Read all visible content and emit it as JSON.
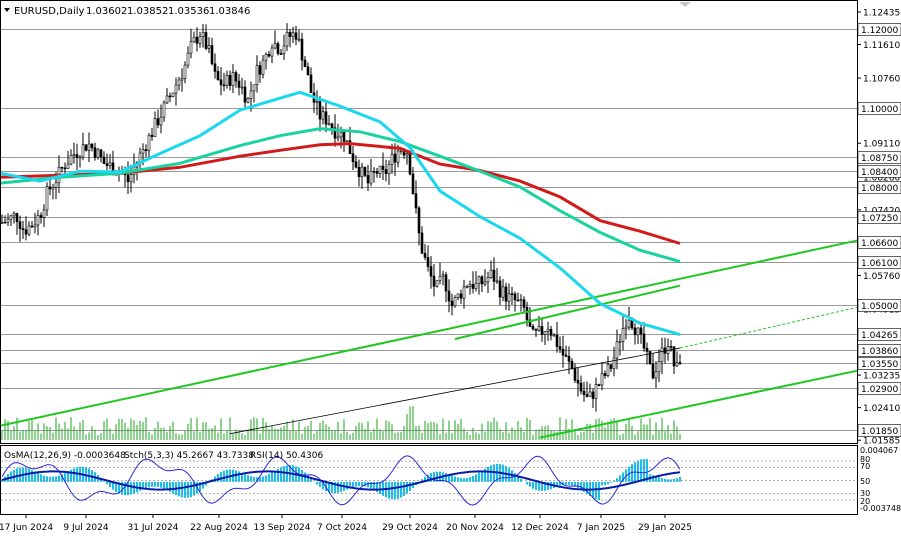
{
  "chart_data": {
    "type": "candlestick",
    "symbol_header": "EURUSD,Daily",
    "ohlc_header": {
      "open": "1.03602",
      "high": "1.03852",
      "low": "1.03536",
      "close": "1.03846"
    },
    "ylim": [
      1.0159,
      1.12435
    ],
    "y_ticks": [
      "1.12435",
      "1.11610",
      "1.10760",
      "1.09110",
      "1.08260",
      "1.07420",
      "1.05760",
      "1.04915",
      "1.03235",
      "1.02410",
      "1.01585"
    ],
    "level_lines": [
      {
        "label": "1.12000",
        "value": 1.12
      },
      {
        "label": "1.10000",
        "value": 1.1
      },
      {
        "label": "1.08750",
        "value": 1.0875
      },
      {
        "label": "1.08400",
        "value": 1.084
      },
      {
        "label": "1.08000",
        "value": 1.08
      },
      {
        "label": "1.07250",
        "value": 1.0725
      },
      {
        "label": "1.06600",
        "value": 1.066
      },
      {
        "label": "1.06100",
        "value": 1.061
      },
      {
        "label": "1.05000",
        "value": 1.05
      },
      {
        "label": "1.04265",
        "value": 1.04265
      },
      {
        "label": "1.03860",
        "value": 1.0386
      },
      {
        "label": "1.03550",
        "value": 1.0355
      },
      {
        "label": "1.02900",
        "value": 1.029
      },
      {
        "label": "1.01850",
        "value": 1.0185
      }
    ],
    "x_labels": [
      "17 Jun 2024",
      "9 Jul 2024",
      "31 Jul 2024",
      "22 Aug 2024",
      "13 Sep 2024",
      "7 Oct 2024",
      "29 Oct 2024",
      "20 Nov 2024",
      "12 Dec 2024",
      "7 Jan 2025",
      "29 Jan 2025"
    ],
    "price_series": [
      [
        0,
        1.071
      ],
      [
        8,
        1.0715
      ],
      [
        16,
        1.073
      ],
      [
        24,
        1.069
      ],
      [
        32,
        1.0705
      ],
      [
        40,
        1.073
      ],
      [
        48,
        1.079
      ],
      [
        56,
        1.082
      ],
      [
        64,
        1.0855
      ],
      [
        72,
        1.088
      ],
      [
        80,
        1.0895
      ],
      [
        88,
        1.091
      ],
      [
        96,
        1.089
      ],
      [
        104,
        1.086
      ],
      [
        112,
        1.085
      ],
      [
        120,
        1.084
      ],
      [
        128,
        1.0815
      ],
      [
        136,
        1.086
      ],
      [
        144,
        1.09
      ],
      [
        152,
        1.094
      ],
      [
        160,
        1.098
      ],
      [
        168,
        1.102
      ],
      [
        176,
        1.106
      ],
      [
        184,
        1.11
      ],
      [
        192,
        1.116
      ],
      [
        200,
        1.119
      ],
      [
        208,
        1.115
      ],
      [
        216,
        1.107
      ],
      [
        224,
        1.106
      ],
      [
        232,
        1.108
      ],
      [
        240,
        1.106
      ],
      [
        248,
        1.102
      ],
      [
        256,
        1.109
      ],
      [
        264,
        1.112
      ],
      [
        272,
        1.117
      ],
      [
        280,
        1.115
      ],
      [
        288,
        1.118
      ],
      [
        296,
        1.119
      ],
      [
        304,
        1.112
      ],
      [
        312,
        1.103
      ],
      [
        320,
        1.098
      ],
      [
        328,
        1.097
      ],
      [
        336,
        1.094
      ],
      [
        344,
        1.093
      ],
      [
        352,
        1.088
      ],
      [
        360,
        1.084
      ],
      [
        368,
        1.081
      ],
      [
        376,
        1.084
      ],
      [
        384,
        1.083
      ],
      [
        392,
        1.087
      ],
      [
        400,
        1.09
      ],
      [
        408,
        1.089
      ],
      [
        414,
        1.077
      ],
      [
        420,
        1.066
      ],
      [
        428,
        1.059
      ],
      [
        436,
        1.054
      ],
      [
        444,
        1.057
      ],
      [
        452,
        1.05
      ],
      [
        460,
        1.053
      ],
      [
        468,
        1.056
      ],
      [
        476,
        1.055
      ],
      [
        484,
        1.056
      ],
      [
        492,
        1.058
      ],
      [
        500,
        1.054
      ],
      [
        508,
        1.052
      ],
      [
        516,
        1.051
      ],
      [
        524,
        1.049
      ],
      [
        532,
        1.042
      ],
      [
        540,
        1.043
      ],
      [
        548,
        1.045
      ],
      [
        556,
        1.041
      ],
      [
        564,
        1.037
      ],
      [
        572,
        1.034
      ],
      [
        580,
        1.029
      ],
      [
        588,
        1.026
      ],
      [
        596,
        1.029
      ],
      [
        604,
        1.032
      ],
      [
        612,
        1.035
      ],
      [
        620,
        1.042
      ],
      [
        628,
        1.048
      ],
      [
        636,
        1.044
      ],
      [
        644,
        1.039
      ],
      [
        652,
        1.032
      ],
      [
        660,
        1.037
      ],
      [
        668,
        1.041
      ],
      [
        676,
        1.033
      ],
      [
        682,
        1.0385
      ]
    ],
    "series": [
      {
        "name": "",
        "color": "#d11a1a",
        "values": [
          [
            0,
            1.0825
          ],
          [
            60,
            1.083
          ],
          [
            120,
            1.0835
          ],
          [
            180,
            1.085
          ],
          [
            240,
            1.0878
          ],
          [
            280,
            1.0893
          ],
          [
            320,
            1.0907
          ],
          [
            350,
            1.091
          ],
          [
            400,
            1.0898
          ],
          [
            440,
            1.0858
          ],
          [
            480,
            1.0842
          ],
          [
            520,
            1.0815
          ],
          [
            560,
            1.0775
          ],
          [
            600,
            1.0715
          ],
          [
            640,
            1.0688
          ],
          [
            680,
            1.0657
          ]
        ]
      },
      {
        "name": "",
        "color": "#18d2a0",
        "values": [
          [
            0,
            1.081
          ],
          [
            60,
            1.0825
          ],
          [
            120,
            1.0835
          ],
          [
            180,
            1.086
          ],
          [
            240,
            1.0905
          ],
          [
            280,
            1.093
          ],
          [
            320,
            1.0948
          ],
          [
            360,
            1.094
          ],
          [
            400,
            1.0915
          ],
          [
            440,
            1.0878
          ],
          [
            480,
            1.084
          ],
          [
            520,
            1.08
          ],
          [
            560,
            1.074
          ],
          [
            600,
            1.0685
          ],
          [
            640,
            1.064
          ],
          [
            680,
            1.0611
          ]
        ]
      },
      {
        "name": "",
        "color": "#19d8ee",
        "values": [
          [
            0,
            1.0835
          ],
          [
            40,
            1.0815
          ],
          [
            80,
            1.084
          ],
          [
            120,
            1.0838
          ],
          [
            160,
            1.0885
          ],
          [
            200,
            1.093
          ],
          [
            240,
            1.0995
          ],
          [
            280,
            1.1025
          ],
          [
            300,
            1.104
          ],
          [
            340,
            1.1005
          ],
          [
            380,
            1.0965
          ],
          [
            410,
            1.09
          ],
          [
            440,
            1.079
          ],
          [
            480,
            1.0725
          ],
          [
            520,
            1.067
          ],
          [
            560,
            1.0595
          ],
          [
            600,
            1.0505
          ],
          [
            640,
            1.0455
          ],
          [
            680,
            1.0426
          ]
        ]
      }
    ],
    "channel_lines": [
      {
        "color": "#1ec81e",
        "from": [
          0,
          1.0195
        ],
        "to": [
          858,
          1.0665
        ]
      },
      {
        "color": "#1ec81e",
        "from": [
          540,
          1.0165
        ],
        "to": [
          858,
          1.0335
        ]
      },
      {
        "color": "#1ec81e",
        "from": [
          455,
          1.0415
        ],
        "to": [
          680,
          1.055
        ]
      }
    ],
    "volume_note": "tick volume bars along price panel bottom",
    "indicator_panel": {
      "header_parts": [
        "OsMA(12,26,9) -0.0003648",
        "Stch(5,3,3) 45.2667 43.7338",
        "RSI(14) 50.4306"
      ],
      "right_labels": [
        "0.004067",
        "80",
        "70",
        "50",
        "30",
        "20",
        "-0.003748"
      ],
      "osma_range": [
        -0.003748,
        0.004067
      ],
      "levels": [
        80,
        70,
        50,
        30,
        20
      ]
    }
  }
}
